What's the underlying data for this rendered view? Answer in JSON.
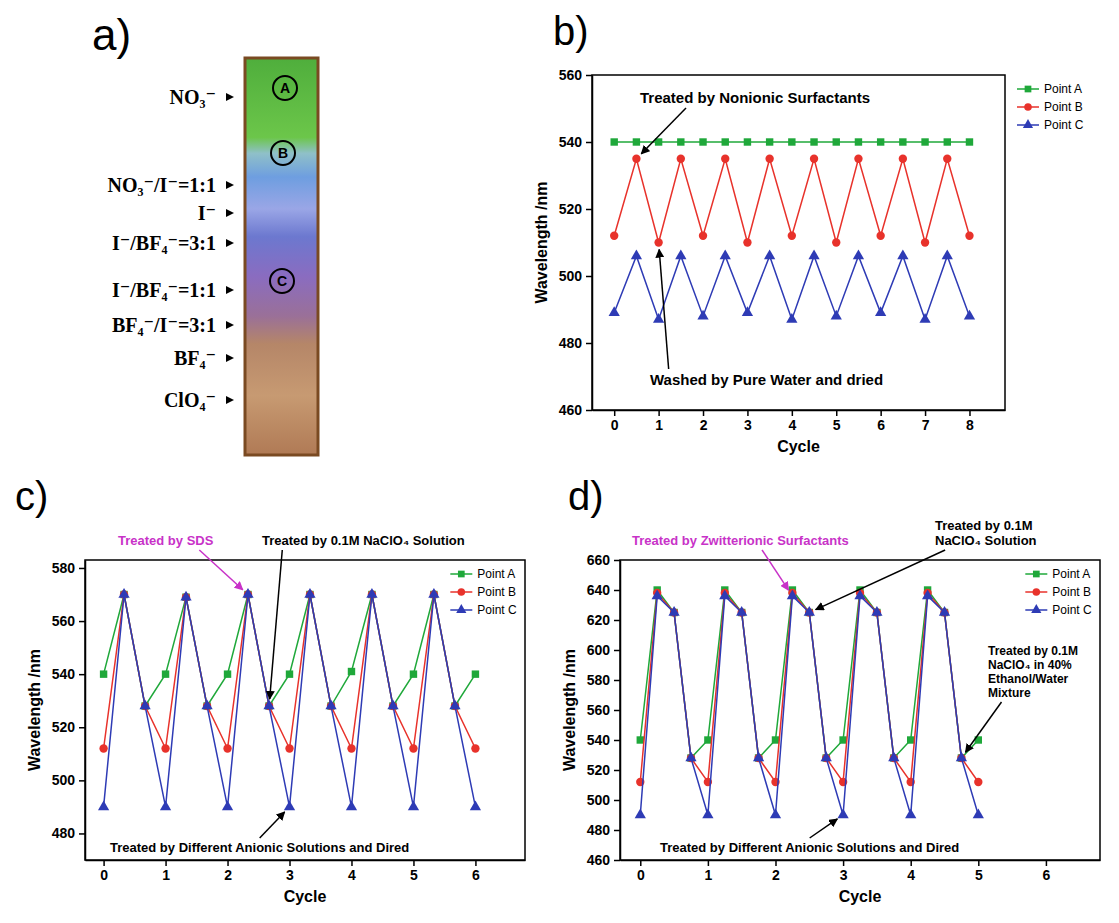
{
  "photo": {
    "title": "a)",
    "labels": [
      "NO₃⁻",
      "NO₃⁻/I⁻=1:1",
      "I⁻",
      "I⁻/BF₄⁻=3:1",
      "I⁻/BF₄⁻=1:1",
      "BF₄⁻/I⁻=3:1",
      "BF₄⁻",
      "ClO₄⁻"
    ],
    "points": [
      "A",
      "B",
      "C"
    ]
  },
  "chart_data": [
    {
      "type": "line",
      "title": "b)",
      "x_label": "Cycle",
      "y_label": "Wavelength /nm",
      "xlim": [
        -0.5,
        8.8
      ],
      "xticks": [
        0,
        1,
        2,
        3,
        4,
        5,
        6,
        7,
        8
      ],
      "ylim": [
        460,
        560
      ],
      "yticks": [
        460,
        480,
        500,
        520,
        540,
        560
      ],
      "legend": "right",
      "x": [
        0,
        0.5,
        1,
        1.5,
        2,
        2.5,
        3,
        3.5,
        4,
        4.5,
        5,
        5.5,
        6,
        6.5,
        7,
        7.5,
        8
      ],
      "series": [
        {
          "name": "Point A",
          "color": "#1fa83a",
          "marker": "square",
          "values": [
            540,
            540,
            540,
            540,
            540,
            540,
            540,
            540,
            540,
            540,
            540,
            540,
            540,
            540,
            540,
            540,
            540
          ]
        },
        {
          "name": "Point B",
          "color": "#e8322b",
          "marker": "circle",
          "values": [
            512,
            535,
            510,
            535,
            512,
            535,
            510,
            535,
            512,
            535,
            510,
            535,
            512,
            535,
            510,
            535,
            512
          ]
        },
        {
          "name": "Point C",
          "color": "#2e3bb5",
          "marker": "triangle",
          "values": [
            489,
            506,
            487,
            506,
            488,
            506,
            489,
            506,
            487,
            506,
            488,
            506,
            489,
            506,
            487,
            506,
            488
          ]
        }
      ],
      "annotations": [
        {
          "text": "Treated by Nonionic Surfactants",
          "color": "#000000"
        },
        {
          "text": "Washed by Pure Water and dried",
          "color": "#000000"
        }
      ]
    },
    {
      "type": "line",
      "title": "c)",
      "x_label": "Cycle",
      "y_label": "Wavelength /nm",
      "xlim": [
        -0.3,
        6.8
      ],
      "xticks": [
        0,
        1,
        2,
        3,
        4,
        5,
        6
      ],
      "ylim": [
        470,
        583
      ],
      "yticks": [
        480,
        500,
        520,
        540,
        560,
        580
      ],
      "legend": "top-right",
      "x": [
        0,
        0.33,
        0.67,
        1,
        1.33,
        1.67,
        2,
        2.33,
        2.67,
        3,
        3.33,
        3.67,
        4,
        4.33,
        4.67,
        5,
        5.33,
        5.67,
        6
      ],
      "series": [
        {
          "name": "Point A",
          "color": "#1fa83a",
          "marker": "square",
          "values": [
            540,
            570,
            528,
            540,
            569,
            528,
            540,
            570,
            528,
            540,
            570,
            528,
            541,
            570,
            528,
            540,
            570,
            528,
            540
          ]
        },
        {
          "name": "Point B",
          "color": "#e8322b",
          "marker": "circle",
          "values": [
            512,
            570,
            528,
            512,
            569,
            528,
            512,
            570,
            528,
            512,
            570,
            528,
            512,
            570,
            528,
            512,
            570,
            528,
            512
          ]
        },
        {
          "name": "Point C",
          "color": "#2e3bb5",
          "marker": "triangle",
          "values": [
            490,
            570,
            528,
            490,
            569,
            528,
            490,
            570,
            528,
            490,
            570,
            528,
            490,
            570,
            528,
            490,
            570,
            528,
            490
          ]
        }
      ],
      "annotations": [
        {
          "text": "Treated by SDS",
          "color": "#c832c8"
        },
        {
          "text": "Treated by 0.1M NaClO₄ Solution",
          "color": "#000000"
        },
        {
          "text": "Treated by Different Anionic Solutions and Dired",
          "color": "#000000"
        }
      ]
    },
    {
      "type": "line",
      "title": "d)",
      "x_label": "Cycle",
      "y_label": "Wavelength /nm",
      "xlim": [
        -0.3,
        6.8
      ],
      "xticks": [
        0,
        1,
        2,
        3,
        4,
        5,
        6
      ],
      "ylim": [
        460,
        660
      ],
      "yticks": [
        460,
        480,
        500,
        520,
        540,
        560,
        580,
        600,
        620,
        640,
        660
      ],
      "legend": "top-right",
      "x": [
        0,
        0.25,
        0.5,
        0.75,
        1,
        1.25,
        1.5,
        1.75,
        2,
        2.25,
        2.5,
        2.75,
        3,
        3.25,
        3.5,
        3.75,
        4,
        4.25,
        4.5,
        4.75,
        5
      ],
      "series": [
        {
          "name": "Point A",
          "color": "#1fa83a",
          "marker": "square",
          "values": [
            540,
            640,
            625,
            528,
            540,
            640,
            625,
            528,
            540,
            640,
            625,
            528,
            540,
            640,
            625,
            528,
            540,
            640,
            625,
            528,
            540
          ]
        },
        {
          "name": "Point B",
          "color": "#e8322b",
          "marker": "circle",
          "values": [
            512,
            638,
            625,
            528,
            512,
            638,
            625,
            528,
            512,
            638,
            625,
            528,
            512,
            638,
            625,
            528,
            512,
            638,
            625,
            528,
            512
          ]
        },
        {
          "name": "Point C",
          "color": "#2e3bb5",
          "marker": "triangle",
          "values": [
            490,
            636,
            625,
            528,
            490,
            636,
            625,
            528,
            490,
            636,
            625,
            528,
            490,
            636,
            625,
            528,
            490,
            636,
            625,
            528,
            490
          ]
        }
      ],
      "annotations": [
        {
          "text": "Treated by Zwitterionic Surfactants",
          "color": "#c832c8"
        },
        {
          "text": "Treated by 0.1M NaClO₄ Solution",
          "color": "#000000"
        },
        {
          "text": "Treated by 0.1M NaClO₄ in 40% Ethanol/Water Mixture",
          "color": "#000000"
        },
        {
          "text": "Treated by Different Anionic Solutions and Dired",
          "color": "#000000"
        }
      ]
    }
  ]
}
